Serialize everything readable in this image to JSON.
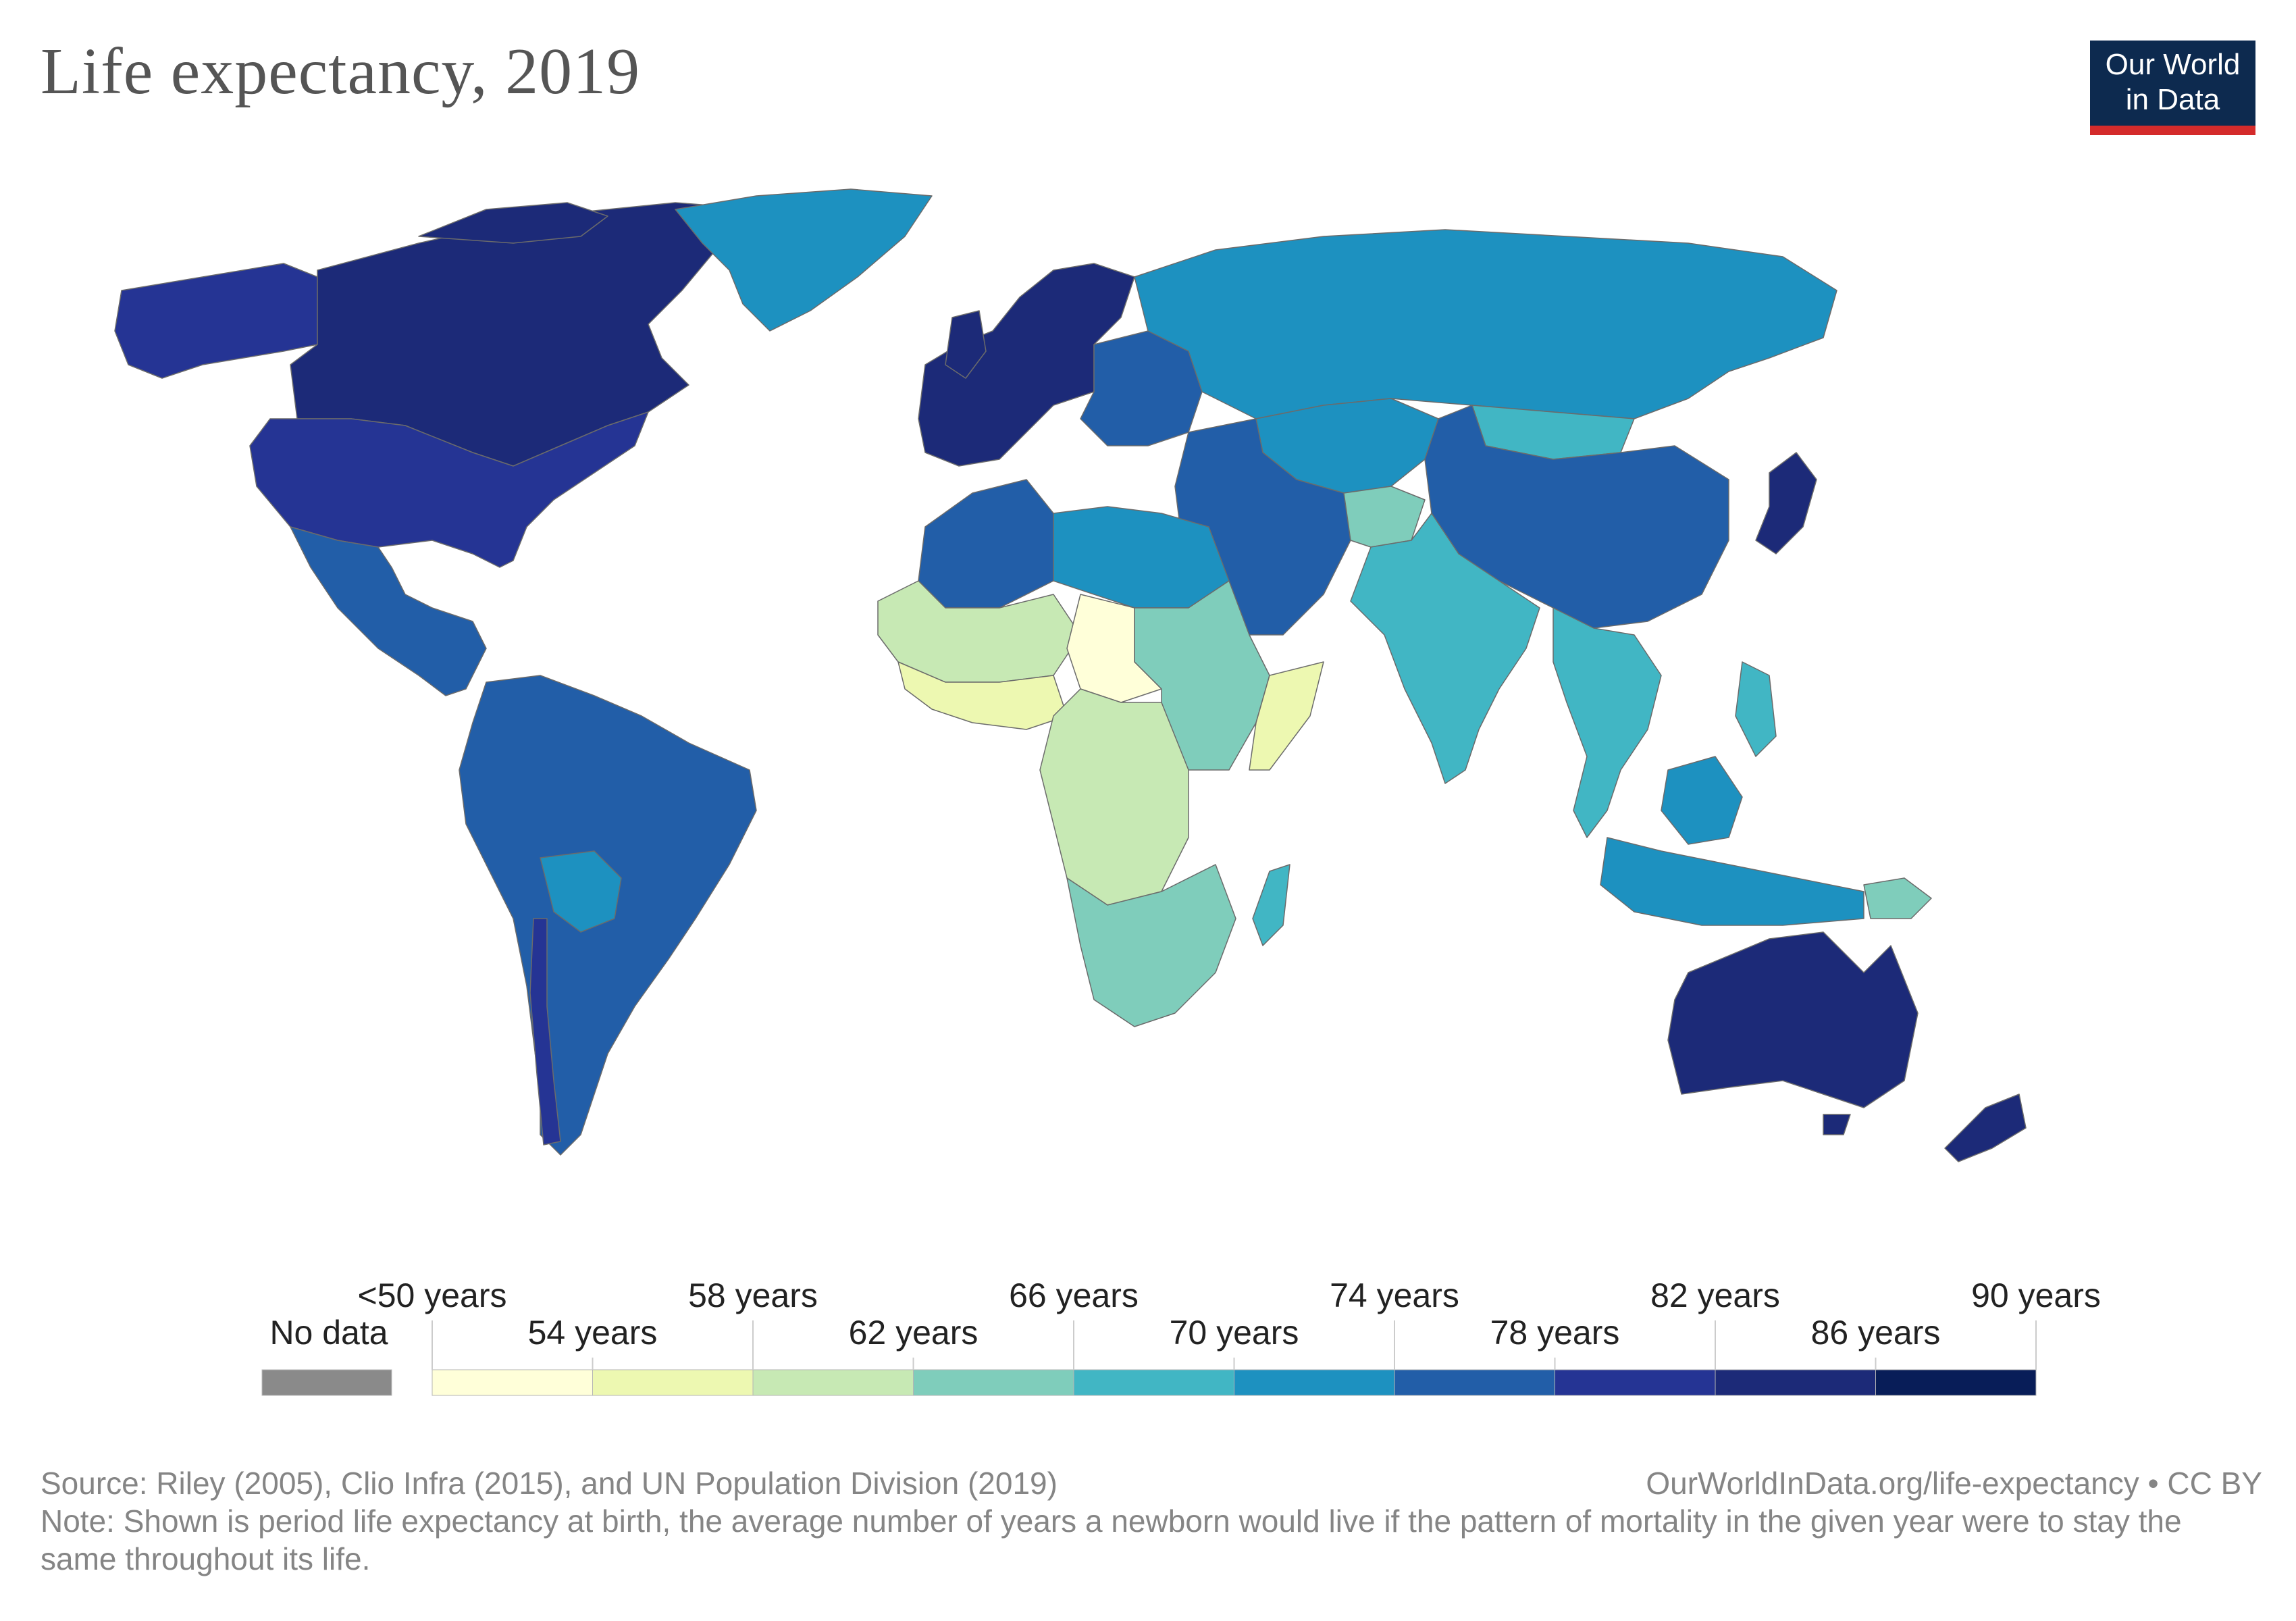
{
  "title": "Life expectancy, 2019",
  "logo": {
    "line1": "Our World",
    "line2": "in Data"
  },
  "legend": {
    "no_data_label": "No data",
    "no_data_color": "#8a8a8a",
    "bins": [
      {
        "label": "<50 years",
        "color": "#ffffd9"
      },
      {
        "label": "54 years",
        "color": "#edf8b1"
      },
      {
        "label": "58 years",
        "color": "#c7e9b4"
      },
      {
        "label": "62 years",
        "color": "#7fcdbb"
      },
      {
        "label": "66 years",
        "color": "#41b6c4"
      },
      {
        "label": "70 years",
        "color": "#1d91c0"
      },
      {
        "label": "74 years",
        "color": "#225ea8"
      },
      {
        "label": "78 years",
        "color": "#253494"
      },
      {
        "label": "82 years",
        "color": "#1c2a78"
      },
      {
        "label": "86 years",
        "color": "#081d58"
      }
    ],
    "end_label": "90 years"
  },
  "map": {
    "ocean_color": "#ffffff",
    "border_color": "#6b6b6b",
    "regions": [
      {
        "name": "Canada",
        "color": "#1c2a78"
      },
      {
        "name": "United States",
        "color": "#253494"
      },
      {
        "name": "Alaska",
        "color": "#253494"
      },
      {
        "name": "Greenland",
        "color": "#1d91c0"
      },
      {
        "name": "Mexico & Central America",
        "color": "#225ea8"
      },
      {
        "name": "South America",
        "color": "#225ea8"
      },
      {
        "name": "Bolivia",
        "color": "#1d91c0"
      },
      {
        "name": "Chile",
        "color": "#253494"
      },
      {
        "name": "Western Europe",
        "color": "#1c2a78"
      },
      {
        "name": "Eastern Europe",
        "color": "#225ea8"
      },
      {
        "name": "Russia",
        "color": "#1d91c0"
      },
      {
        "name": "Kazakhstan & Central Asia",
        "color": "#1d91c0"
      },
      {
        "name": "Mongolia",
        "color": "#41b6c4"
      },
      {
        "name": "China",
        "color": "#225ea8"
      },
      {
        "name": "Japan",
        "color": "#1c2a78"
      },
      {
        "name": "Middle East",
        "color": "#225ea8"
      },
      {
        "name": "Afghanistan",
        "color": "#7fcdbb"
      },
      {
        "name": "India & South Asia",
        "color": "#41b6c4"
      },
      {
        "name": "Southeast Asia",
        "color": "#41b6c4"
      },
      {
        "name": "Indonesia",
        "color": "#1d91c0"
      },
      {
        "name": "North Africa",
        "color": "#225ea8"
      },
      {
        "name": "Libya & Egypt",
        "color": "#1d91c0"
      },
      {
        "name": "Sahel",
        "color": "#c7e9b4"
      },
      {
        "name": "West Africa",
        "color": "#edf8b1"
      },
      {
        "name": "Central African Republic & Chad",
        "color": "#ffffd9"
      },
      {
        "name": "East Africa",
        "color": "#7fcdbb"
      },
      {
        "name": "Somalia",
        "color": "#edf8b1"
      },
      {
        "name": "Central Africa",
        "color": "#c7e9b4"
      },
      {
        "name": "Southern Africa",
        "color": "#7fcdbb"
      },
      {
        "name": "Madagascar",
        "color": "#41b6c4"
      },
      {
        "name": "Australia",
        "color": "#1c2a78"
      },
      {
        "name": "New Zealand",
        "color": "#1c2a78"
      },
      {
        "name": "Papua New Guinea",
        "color": "#7fcdbb"
      }
    ]
  },
  "footer": {
    "source": "Source: Riley (2005), Clio Infra (2015), and UN Population Division (2019)",
    "url": "OurWorldInData.org/life-expectancy • CC BY",
    "note": "Note: Shown is period life expectancy at birth, the average number of years a newborn would live if the pattern of mortality in the given year were to stay the same throughout its life."
  }
}
